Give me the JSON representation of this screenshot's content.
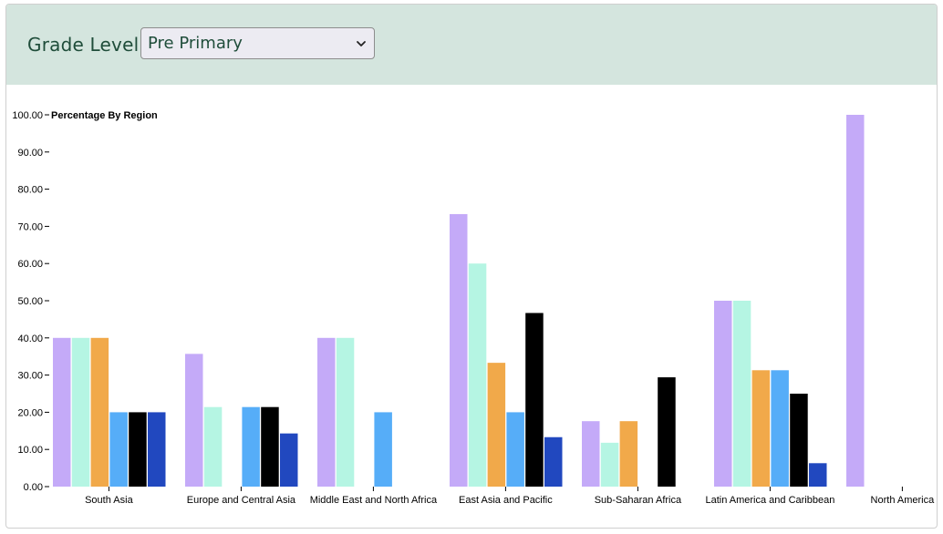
{
  "filter": {
    "label": "Grade Level",
    "selected": "Pre Primary"
  },
  "icons": {
    "dropdown": "chevron-down-icon"
  },
  "colors": {
    "header_bg": "#d4e5de",
    "series": [
      "#c4aaf8",
      "#b5f5e3",
      "#f1a94a",
      "#56adf8",
      "#000000",
      "#2148bf"
    ]
  },
  "chart_data": {
    "type": "bar",
    "title": "Percentage By Region",
    "xlabel": "",
    "ylabel": "",
    "ylim": [
      0,
      100
    ],
    "yticks": [
      "0.00",
      "10.00",
      "20.00",
      "30.00",
      "40.00",
      "50.00",
      "60.00",
      "70.00",
      "80.00",
      "90.00",
      "100.00"
    ],
    "grid": false,
    "legend": "none",
    "categories": [
      "South Asia",
      "Europe and Central Asia",
      "Middle East and North Africa",
      "East Asia and Pacific",
      "Sub-Saharan Africa",
      "Latin America and Caribbean",
      "North America"
    ],
    "series": [
      {
        "values": [
          40.0,
          35.7,
          40.0,
          73.3,
          17.6,
          50.0,
          100.0
        ]
      },
      {
        "values": [
          40.0,
          21.4,
          40.0,
          60.0,
          11.8,
          50.0,
          0
        ]
      },
      {
        "values": [
          40.0,
          0,
          0,
          33.3,
          17.6,
          31.3,
          0
        ]
      },
      {
        "values": [
          20.0,
          21.4,
          20.0,
          20.0,
          0,
          31.3,
          0
        ]
      },
      {
        "values": [
          20.0,
          21.4,
          0,
          46.7,
          29.4,
          25.0,
          0
        ]
      },
      {
        "values": [
          20.0,
          14.3,
          0,
          13.3,
          0,
          6.3,
          0
        ]
      }
    ]
  }
}
